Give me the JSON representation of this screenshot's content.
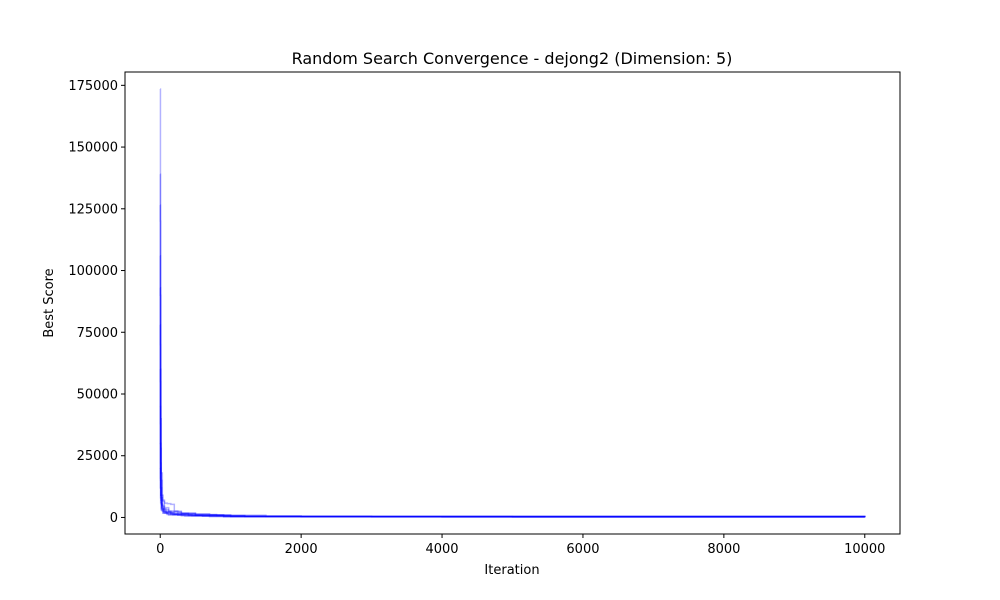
{
  "chart_data": {
    "type": "line",
    "title": "Random Search Convergence - dejong2 (Dimension: 5)",
    "xlabel": "Iteration",
    "ylabel": "Best Score",
    "xlim": [
      -500,
      10500
    ],
    "ylim": [
      -6700,
      180400
    ],
    "x_ticks": [
      0,
      2000,
      4000,
      6000,
      8000,
      10000
    ],
    "y_ticks": [
      0,
      25000,
      50000,
      75000,
      100000,
      125000,
      150000,
      175000
    ],
    "grid": false,
    "legend": "none",
    "line_color": "#0000ff",
    "line_opacity": 0.3,
    "series": [
      {
        "x": [
          0,
          3,
          6,
          10,
          15,
          25,
          40,
          60,
          100,
          150,
          200,
          300,
          500,
          800,
          1200,
          2000,
          4000,
          10000
        ],
        "values": [
          173500,
          120000,
          60000,
          28000,
          15000,
          9000,
          6500,
          5800,
          5600,
          5300,
          2500,
          1600,
          1200,
          700,
          450,
          300,
          200,
          150
        ]
      },
      {
        "x": [
          0,
          3,
          8,
          15,
          30,
          60,
          120,
          250,
          500,
          1000,
          3000,
          10000
        ],
        "values": [
          139000,
          90000,
          40000,
          18000,
          7000,
          4000,
          2600,
          1800,
          1100,
          500,
          250,
          120
        ]
      },
      {
        "x": [
          0,
          2,
          5,
          10,
          20,
          50,
          120,
          300,
          700,
          1500,
          5000,
          10000
        ],
        "values": [
          126500,
          70000,
          30000,
          12000,
          5000,
          3200,
          2200,
          1500,
          900,
          400,
          200,
          100
        ]
      },
      {
        "x": [
          0,
          2,
          6,
          12,
          25,
          60,
          150,
          400,
          900,
          2000,
          10000
        ],
        "values": [
          106000,
          55000,
          22000,
          9000,
          4500,
          2500,
          1700,
          1100,
          600,
          300,
          150
        ]
      },
      {
        "x": [
          0,
          3,
          7,
          14,
          30,
          80,
          200,
          500,
          1200,
          10000
        ],
        "values": [
          93000,
          45000,
          18000,
          8000,
          3500,
          2000,
          1300,
          800,
          400,
          120
        ]
      },
      {
        "x": [
          0,
          2,
          5,
          10,
          25,
          60,
          180,
          450,
          1000,
          10000
        ],
        "values": [
          78000,
          38000,
          15000,
          7000,
          3000,
          1800,
          1100,
          700,
          350,
          100
        ]
      },
      {
        "x": [
          0,
          2,
          6,
          12,
          30,
          90,
          250,
          600,
          10000
        ],
        "values": [
          60000,
          30000,
          12000,
          5500,
          2500,
          1500,
          900,
          500,
          80
        ]
      },
      {
        "x": [
          0,
          3,
          8,
          20,
          50,
          150,
          400,
          900,
          10000
        ],
        "values": [
          45000,
          20000,
          9000,
          4000,
          2200,
          1300,
          800,
          400,
          90
        ]
      },
      {
        "x": [
          0,
          2,
          5,
          15,
          40,
          100,
          300,
          700,
          10000
        ],
        "values": [
          30000,
          16000,
          8000,
          3500,
          1900,
          1200,
          700,
          350,
          60
        ]
      },
      {
        "x": [
          0,
          2,
          6,
          15,
          40,
          120,
          350,
          900,
          10000
        ],
        "values": [
          20000,
          12000,
          6000,
          3000,
          1700,
          1000,
          600,
          300,
          70
        ]
      }
    ]
  }
}
